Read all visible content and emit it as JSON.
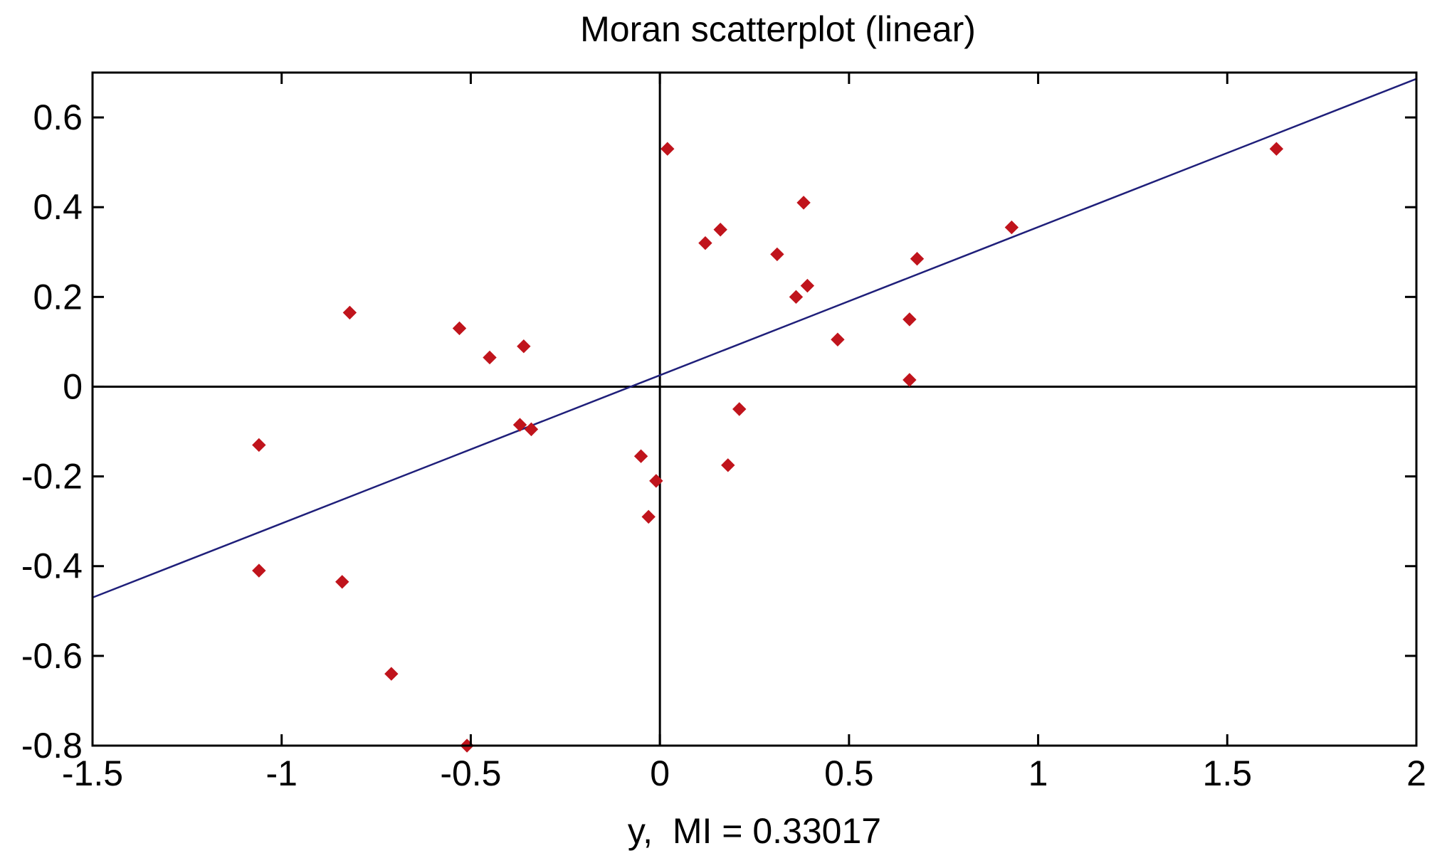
{
  "chart_data": {
    "type": "scatter",
    "title": "Moran scatterplot (linear)",
    "xlabel": "y,  MI = 0.33017",
    "ylabel": "",
    "xlim": [
      -1.5,
      2
    ],
    "ylim": [
      -0.8,
      0.7
    ],
    "xticks": [
      -1.5,
      -1,
      -0.5,
      0,
      0.5,
      1,
      1.5,
      2
    ],
    "xtick_labels": [
      "-1.5",
      "-1",
      "-0.5",
      "0",
      "0.5",
      "1",
      "1.5",
      "2"
    ],
    "yticks": [
      -0.8,
      -0.6,
      -0.4,
      -0.2,
      0,
      0.2,
      0.4,
      0.6
    ],
    "ytick_labels": [
      "-0.8",
      "-0.6",
      "-0.4",
      "-0.2",
      "0",
      "0.2",
      "0.4",
      "0.6"
    ],
    "grid": false,
    "reference_lines": {
      "x": 0,
      "y": 0
    },
    "series": [
      {
        "marker": "diamond",
        "color": "#c0141c",
        "points": [
          [
            0.02,
            0.53
          ],
          [
            1.63,
            0.53
          ],
          [
            0.38,
            0.41
          ],
          [
            0.93,
            0.355
          ],
          [
            0.16,
            0.35
          ],
          [
            0.12,
            0.32
          ],
          [
            0.31,
            0.295
          ],
          [
            0.68,
            0.285
          ],
          [
            0.39,
            0.225
          ],
          [
            0.36,
            0.2
          ],
          [
            -0.82,
            0.165
          ],
          [
            0.66,
            0.15
          ],
          [
            -0.53,
            0.13
          ],
          [
            0.47,
            0.105
          ],
          [
            -0.36,
            0.09
          ],
          [
            -0.45,
            0.065
          ],
          [
            0.66,
            0.015
          ],
          [
            0.21,
            -0.05
          ],
          [
            -0.37,
            -0.085
          ],
          [
            -0.34,
            -0.095
          ],
          [
            -1.06,
            -0.13
          ],
          [
            -0.05,
            -0.155
          ],
          [
            0.18,
            -0.175
          ],
          [
            -0.01,
            -0.21
          ],
          [
            -0.03,
            -0.29
          ],
          [
            -1.06,
            -0.41
          ],
          [
            -0.84,
            -0.435
          ],
          [
            -0.71,
            -0.64
          ],
          [
            -0.51,
            -0.8
          ]
        ]
      }
    ],
    "fit_line": {
      "color": "#1f1f7a",
      "x": [
        -1.5,
        2
      ],
      "y": [
        -0.47,
        0.686
      ]
    }
  }
}
